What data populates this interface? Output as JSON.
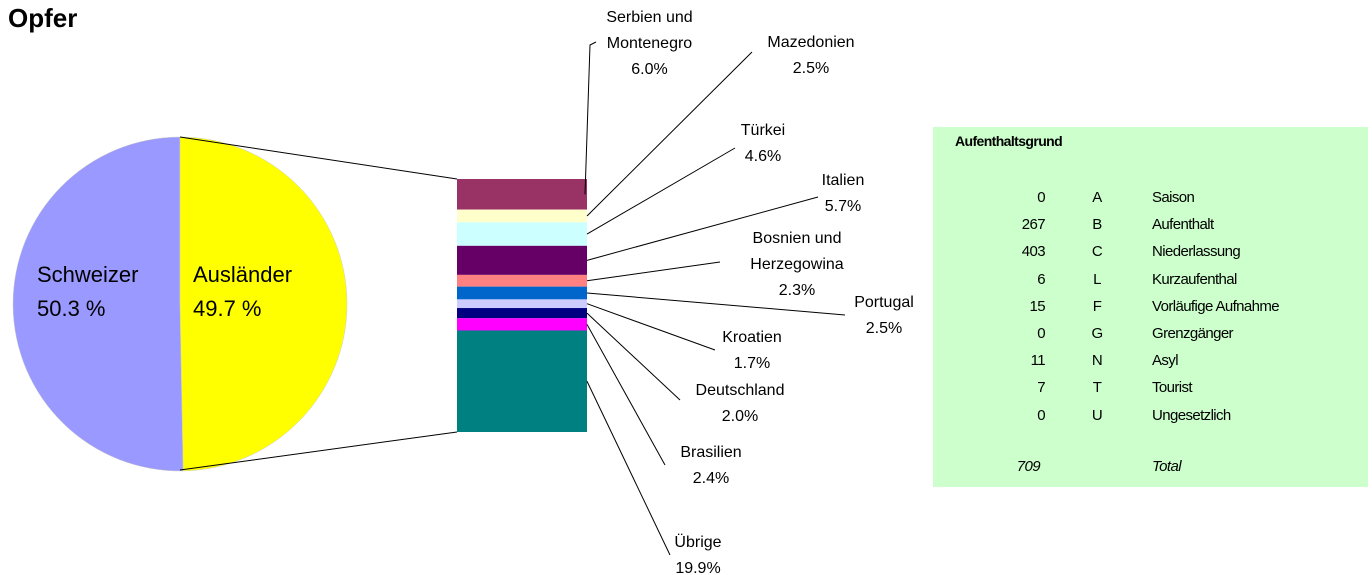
{
  "chart_data": {
    "type": "pie",
    "title": "Opfer",
    "categories": [
      "Schweizer",
      "Ausländer"
    ],
    "values": [
      50.3,
      49.7
    ],
    "value_labels": [
      "50.3 %",
      "49.7 %"
    ],
    "colors": [
      "#9999FF",
      "#FFFF00"
    ],
    "breakdown": {
      "type": "stacked-bar",
      "categories": [
        "Serbien und Montenegro",
        "Mazedonien",
        "Türkei",
        "Italien",
        "Bosnien und Herzegowina",
        "Portugal",
        "Kroatien",
        "Deutschland",
        "Brasilien",
        "Übrige"
      ],
      "values": [
        6.0,
        2.5,
        4.6,
        5.7,
        2.3,
        2.5,
        1.7,
        2.0,
        2.4,
        19.9
      ],
      "value_labels": [
        "6.0%",
        "2.5%",
        "4.6%",
        "5.7%",
        "2.3%",
        "2.5%",
        "1.7%",
        "2.0%",
        "2.4%",
        "19.9%"
      ],
      "colors": [
        "#993366",
        "#FFFFCC",
        "#CCFFFF",
        "#660066",
        "#FF8080",
        "#0066CC",
        "#CCCCFF",
        "#000080",
        "#FF00FF",
        "#008080"
      ]
    }
  },
  "table": {
    "title": "Aufenthaltsgrund",
    "rows": [
      [
        "0",
        "A",
        "Saison"
      ],
      [
        "267",
        "B",
        "Aufenthalt"
      ],
      [
        "403",
        "C",
        "Niederlassung"
      ],
      [
        "6",
        "L",
        "Kurzaufenthal"
      ],
      [
        "15",
        "F",
        "Vorläufige Aufnahme"
      ],
      [
        "0",
        "G",
        "Grenzgänger"
      ],
      [
        "11",
        "N",
        "Asyl"
      ],
      [
        "7",
        "T",
        "Tourist"
      ],
      [
        "0",
        "U",
        "Ungesetzlich"
      ]
    ],
    "total": [
      "709",
      "Total"
    ]
  }
}
